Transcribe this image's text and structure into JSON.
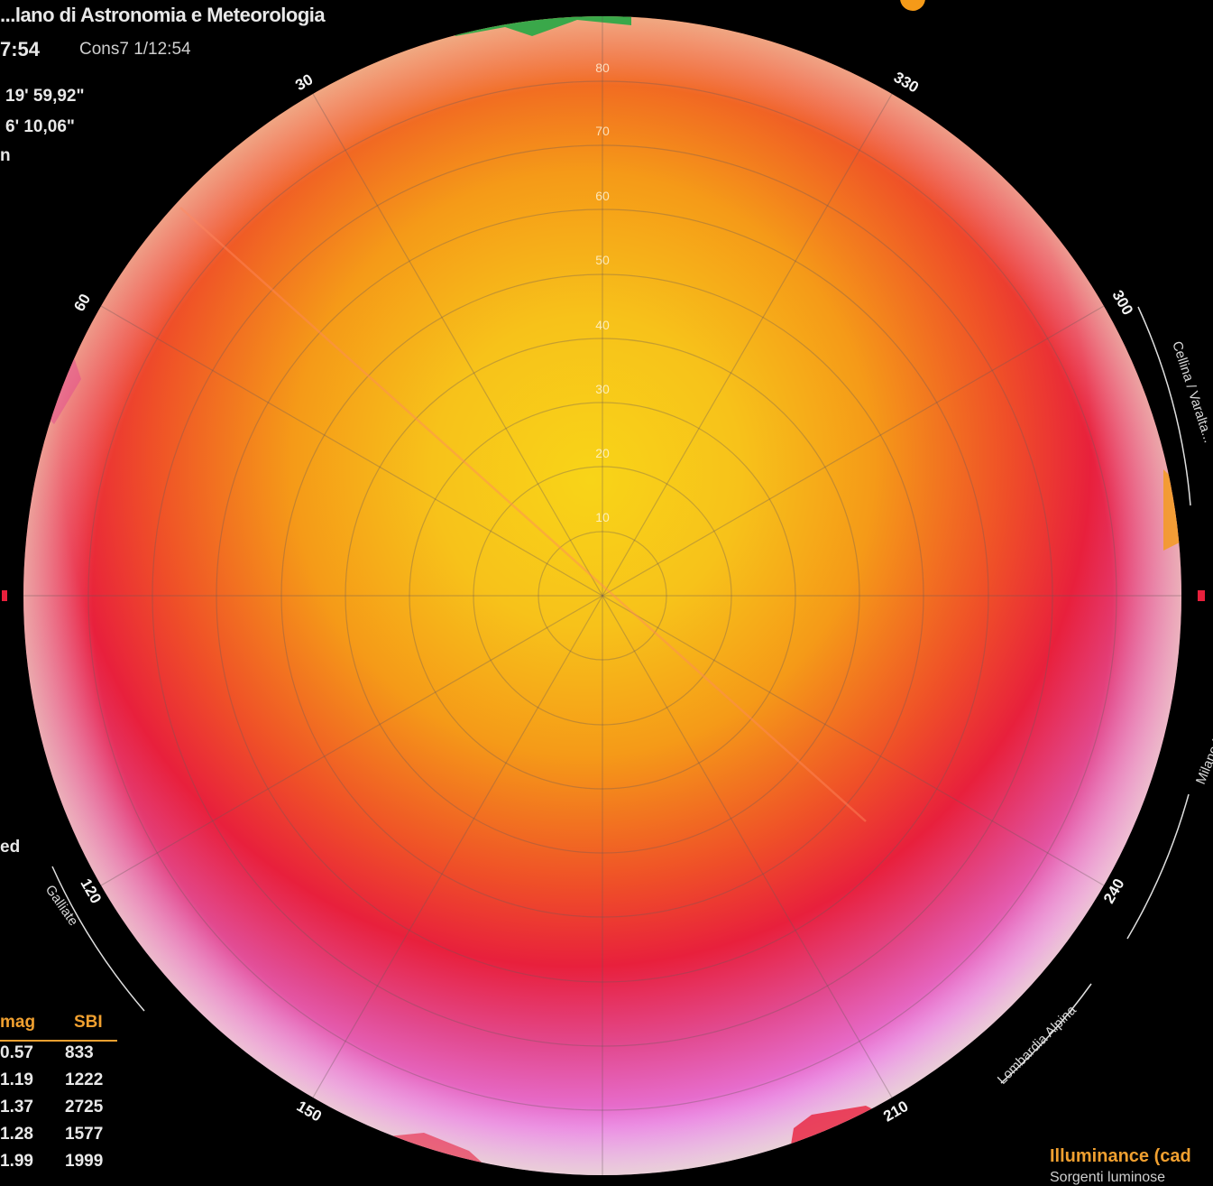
{
  "header": {
    "title": "...lano di Astronomia e Meteorologia",
    "time": "7:54",
    "constellation_label": "Cons7  1/12:54",
    "coord_a": "19' 59,92\"",
    "coord_b": "6' 10,06\""
  },
  "side_fragments": {
    "upper": "n",
    "lower": "ed"
  },
  "sky_map": {
    "azimuth_labels": [
      "30",
      "330",
      "60",
      "300",
      "120",
      "240",
      "150",
      "210"
    ],
    "altitude_labels": [
      "80",
      "70",
      "60",
      "50",
      "40",
      "30",
      "20",
      "10"
    ],
    "rim_texts": [
      "Cellina / Varalta...",
      "Milano Nord",
      "Lombardia Alpina",
      "Galliate"
    ],
    "colors": {
      "zenith": "#f8d418",
      "mid": "#f59a18",
      "ring": "#e8203c",
      "outer": "#e878e0",
      "rim": "#c8f0f8",
      "horizon_green": "#3aa84a"
    }
  },
  "table": {
    "headers": [
      "mag",
      "SBI"
    ],
    "rows": [
      [
        "0.57",
        "833"
      ],
      [
        "1.19",
        "1222"
      ],
      [
        "1.37",
        "2725"
      ],
      [
        "1.28",
        "1577"
      ],
      [
        "1.99",
        "1999"
      ]
    ]
  },
  "footer": {
    "illuminance_label": "Illuminance (cad",
    "illuminance_sub": "Sorgenti luminose"
  }
}
